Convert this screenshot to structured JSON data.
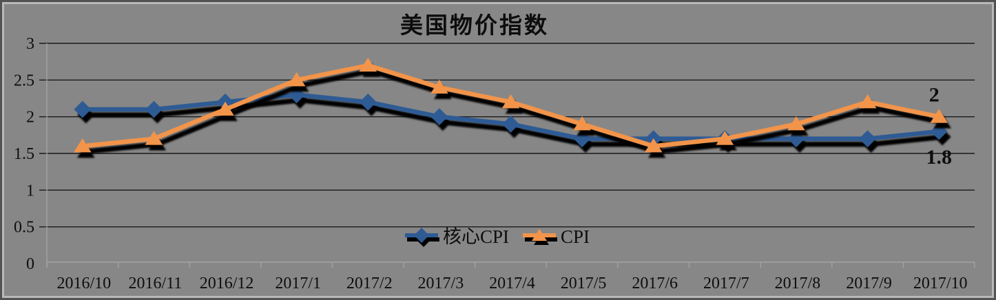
{
  "title": "美国物价指数",
  "colors": {
    "background": "#878787",
    "gridline": "#1a1a1a",
    "axis_line": "#a3a3a3",
    "text": "#0e0e0e",
    "shadow": "#000000",
    "core_cpi_blue": "#2E5B94",
    "cpi_orange": "#F2944A",
    "end_label_cpi": "#ED8C3B",
    "end_label_core_cpi": "#2E5B94"
  },
  "chart_data": {
    "type": "line",
    "title": "美国物价指数",
    "categories": [
      "2016/10",
      "2016/11",
      "2016/12",
      "2017/1",
      "2017/2",
      "2017/3",
      "2017/4",
      "2017/5",
      "2017/6",
      "2017/7",
      "2017/8",
      "2017/9",
      "2017/10"
    ],
    "series": [
      {
        "name": "核心CPI",
        "marker": "diamond",
        "color": "#2E5B94",
        "values": [
          2.1,
          2.1,
          2.2,
          2.3,
          2.2,
          2.0,
          1.9,
          1.7,
          1.7,
          1.7,
          1.7,
          1.7,
          1.8
        ],
        "end_label": "1.8",
        "end_label_color": "#2E5B94"
      },
      {
        "name": "CPI",
        "marker": "triangle",
        "color": "#F2944A",
        "values": [
          1.6,
          1.7,
          2.1,
          2.5,
          2.7,
          2.4,
          2.2,
          1.9,
          1.6,
          1.7,
          1.9,
          2.2,
          2.0
        ],
        "end_label": "2",
        "end_label_color": "#ED8C3B"
      }
    ],
    "xlabel": "",
    "ylabel": "",
    "ylim": [
      0,
      3
    ],
    "yticks": [
      {
        "v": 0,
        "label": "0"
      },
      {
        "v": 0.5,
        "label": "0.5"
      },
      {
        "v": 1,
        "label": "1"
      },
      {
        "v": 1.5,
        "label": "1.5"
      },
      {
        "v": 2,
        "label": "2"
      },
      {
        "v": 2.5,
        "label": "2.5"
      },
      {
        "v": 3,
        "label": "3"
      }
    ],
    "grid": true,
    "legend_position": "bottom-center",
    "legend_items": [
      "核心CPI",
      "CPI"
    ]
  }
}
